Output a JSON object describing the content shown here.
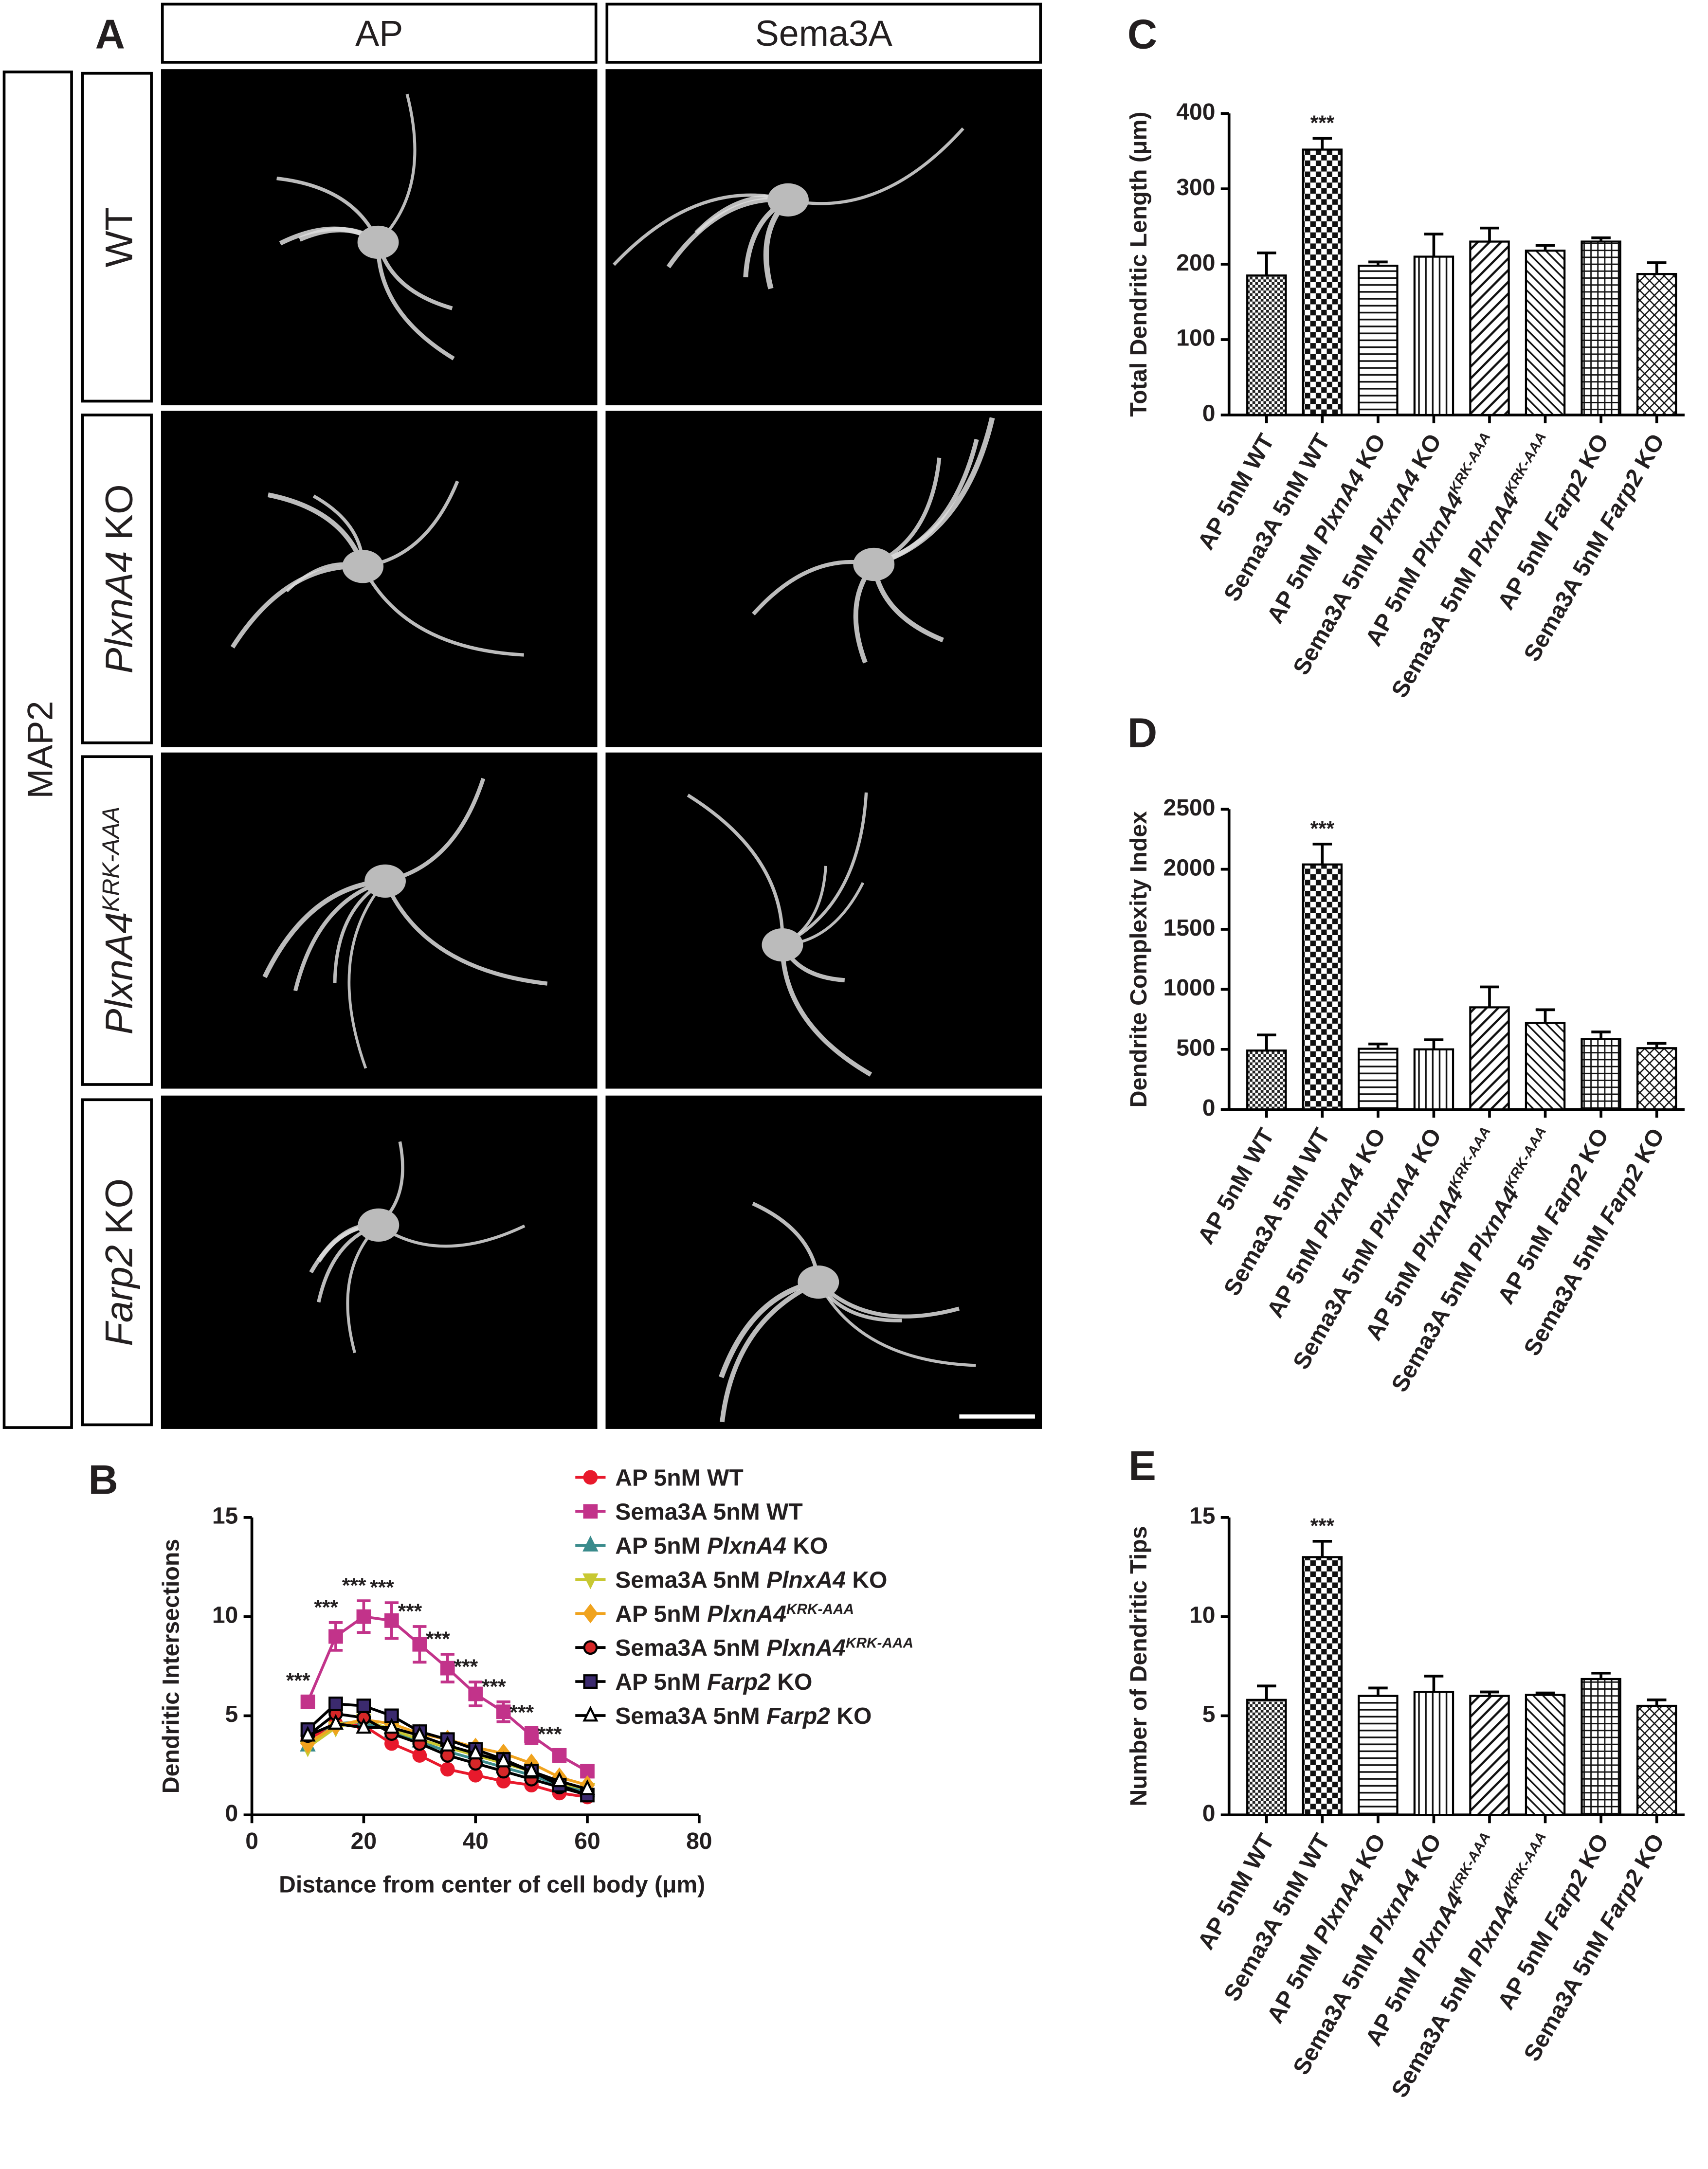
{
  "image_panel": {
    "label": "A",
    "side_label": "MAP2",
    "columns": [
      "AP",
      "Sema3A"
    ],
    "rows": [
      "WT",
      [
        {
          "italic": "PlxnA4"
        },
        " KO"
      ],
      [
        {
          "italic": "PlxnA4"
        },
        {
          "sup": "KRK-AAA"
        }
      ],
      [
        {
          "italic": "Farp2"
        },
        " KO"
      ]
    ]
  },
  "chart_data": [
    {
      "type": "line",
      "label": "B",
      "xlabel": "Distance from center of cell body (μm)",
      "ylabel": "Dendritic Intersections",
      "x": [
        10,
        15,
        20,
        25,
        30,
        35,
        40,
        45,
        50,
        55,
        60
      ],
      "xlim": [
        0,
        80
      ],
      "xticks": [
        0,
        20,
        40,
        60,
        80
      ],
      "ylim": [
        0,
        15
      ],
      "yticks": [
        0,
        5,
        10,
        15
      ],
      "series": [
        {
          "name": "AP 5nM WT",
          "color": "#e8192c",
          "fill": "#e8192c",
          "marker": "circle",
          "values": [
            3.8,
            4.6,
            4.5,
            3.6,
            3.0,
            2.3,
            2.0,
            1.7,
            1.5,
            1.1,
            0.9
          ]
        },
        {
          "name": "Sema3A 5nM WT",
          "color": "#c2338a",
          "fill": "#c2338a",
          "marker": "square",
          "values": [
            5.7,
            9.0,
            10.0,
            9.8,
            8.6,
            7.4,
            6.1,
            5.2,
            4.0,
            3.0,
            2.2
          ],
          "errors": [
            0.3,
            0.7,
            0.8,
            0.9,
            0.9,
            0.7,
            0.6,
            0.5,
            0.4,
            0.3,
            0.2
          ],
          "annotations": [
            "***",
            "***",
            "***",
            "***",
            "***",
            "***",
            "***",
            "***",
            "***",
            "***",
            null
          ]
        },
        {
          "name": [
            "AP 5nM ",
            {
              "italic": "PlxnA4"
            },
            " KO"
          ],
          "color": "#3a8b8c",
          "fill": "#3a8b8c",
          "marker": "triangle",
          "values": [
            3.5,
            4.6,
            4.7,
            4.2,
            3.7,
            3.2,
            2.8,
            2.4,
            2.0,
            1.5,
            1.2
          ]
        },
        {
          "name": [
            "Sema3A 5nM ",
            {
              "italic": "PlnxA4"
            },
            " KO"
          ],
          "color": "#c8c832",
          "fill": "#c8c832",
          "marker": "triangle-down",
          "values": [
            3.4,
            4.4,
            4.8,
            4.3,
            3.8,
            3.4,
            3.0,
            2.6,
            2.2,
            1.6,
            1.3
          ]
        },
        {
          "name": [
            "AP 5nM ",
            {
              "italic": "PlxnA4"
            },
            {
              "sup": "KRK-AAA"
            }
          ],
          "color": "#f0a31e",
          "fill": "#f0a31e",
          "marker": "diamond",
          "values": [
            3.6,
            4.5,
            4.8,
            4.6,
            4.1,
            3.8,
            3.4,
            3.1,
            2.6,
            1.9,
            1.5
          ]
        },
        {
          "name": [
            "Sema3A 5nM ",
            {
              "italic": "PlxnA4"
            },
            {
              "sup": "KRK-AAA"
            }
          ],
          "color": "#000000",
          "fill": "#d62728",
          "marker": "circle",
          "values": [
            4.0,
            5.1,
            4.9,
            4.1,
            3.6,
            3.0,
            2.6,
            2.2,
            1.8,
            1.4,
            1.0
          ]
        },
        {
          "name": [
            "AP 5nM ",
            {
              "italic": "Farp2"
            },
            " KO"
          ],
          "color": "#000000",
          "fill": "#3b2a6e",
          "marker": "square",
          "values": [
            4.3,
            5.6,
            5.5,
            5.0,
            4.2,
            3.8,
            3.3,
            2.8,
            2.2,
            1.5,
            1.0
          ]
        },
        {
          "name": [
            "Sema3A 5nM ",
            {
              "italic": "Farp2"
            },
            " KO"
          ],
          "color": "#000000",
          "fill": "#ffffff",
          "marker": "triangle",
          "values": [
            4.0,
            4.6,
            4.4,
            4.4,
            4.0,
            3.5,
            3.1,
            2.7,
            2.2,
            1.7,
            1.3
          ]
        }
      ]
    },
    {
      "type": "bar",
      "label": "C",
      "ylabel": "Total Dendritic Length (μm)",
      "ylim": [
        0,
        400
      ],
      "yticks": [
        0,
        100,
        200,
        300,
        400
      ],
      "categories": [
        "AP 5nM WT",
        "Sema3A 5nM WT",
        [
          "AP 5nM ",
          {
            "italic": "PlxnA4"
          },
          " KO"
        ],
        [
          "Sema3A 5nM ",
          {
            "italic": "PlxnA4"
          },
          " KO"
        ],
        [
          "AP 5nM ",
          {
            "italic": "PlxnA4"
          },
          {
            "sup": "KRK-AAA"
          }
        ],
        [
          "Sema3A 5nM ",
          {
            "italic": "PlxnA4"
          },
          {
            "sup": "KRK-AAA"
          }
        ],
        [
          "AP 5nM ",
          {
            "italic": "Farp2"
          },
          " KO"
        ],
        [
          "Sema3A 5nM ",
          {
            "italic": "Farp2"
          },
          " KO"
        ]
      ],
      "values": [
        185,
        352,
        198,
        210,
        230,
        218,
        230,
        187
      ],
      "errors": [
        30,
        15,
        5,
        30,
        18,
        7,
        5,
        15
      ],
      "annotations": [
        null,
        "***",
        null,
        null,
        null,
        null,
        null,
        null
      ]
    },
    {
      "type": "bar",
      "label": "D",
      "ylabel": "Dendrite Complexity Index",
      "ylim": [
        0,
        2500
      ],
      "yticks": [
        0,
        500,
        1000,
        1500,
        2000,
        2500
      ],
      "categories": [
        "AP 5nM WT",
        "Sema3A 5nM WT",
        [
          "AP 5nM ",
          {
            "italic": "PlxnA4"
          },
          " KO"
        ],
        [
          "Sema3A 5nM ",
          {
            "italic": "PlxnA4"
          },
          " KO"
        ],
        [
          "AP 5nM ",
          {
            "italic": "PlxnA4"
          },
          {
            "sup": "KRK-AAA"
          }
        ],
        [
          "Sema3A 5nM ",
          {
            "italic": "PlxnA4"
          },
          {
            "sup": "KRK-AAA"
          }
        ],
        [
          "AP 5nM ",
          {
            "italic": "Farp2"
          },
          " KO"
        ],
        [
          "Sema3A 5nM ",
          {
            "italic": "Farp2"
          },
          " KO"
        ]
      ],
      "values": [
        490,
        2040,
        505,
        500,
        850,
        720,
        585,
        510
      ],
      "errors": [
        130,
        170,
        40,
        80,
        170,
        110,
        60,
        40
      ],
      "annotations": [
        null,
        "***",
        null,
        null,
        null,
        null,
        null,
        null
      ]
    },
    {
      "type": "bar",
      "label": "E",
      "ylabel": "Number of Dendritic Tips",
      "ylim": [
        0,
        15
      ],
      "yticks": [
        0,
        5,
        10,
        15
      ],
      "categories": [
        "AP 5nM WT",
        "Sema3A 5nM WT",
        [
          "AP 5nM ",
          {
            "italic": "PlxnA4"
          },
          " KO"
        ],
        [
          "Sema3A 5nM ",
          {
            "italic": "PlxnA4"
          },
          " KO"
        ],
        [
          "AP 5nM ",
          {
            "italic": "PlxnA4"
          },
          {
            "sup": "KRK-AAA"
          }
        ],
        [
          "Sema3A 5nM ",
          {
            "italic": "PlxnA4"
          },
          {
            "sup": "KRK-AAA"
          }
        ],
        [
          "AP 5nM ",
          {
            "italic": "Farp2"
          },
          " KO"
        ],
        [
          "Sema3A 5nM ",
          {
            "italic": "Farp2"
          },
          " KO"
        ]
      ],
      "values": [
        5.8,
        13.0,
        6.0,
        6.2,
        6.0,
        6.05,
        6.85,
        5.5
      ],
      "errors": [
        0.7,
        0.8,
        0.4,
        0.8,
        0.2,
        0.1,
        0.3,
        0.3
      ],
      "annotations": [
        null,
        "***",
        null,
        null,
        null,
        null,
        null,
        null
      ]
    }
  ]
}
